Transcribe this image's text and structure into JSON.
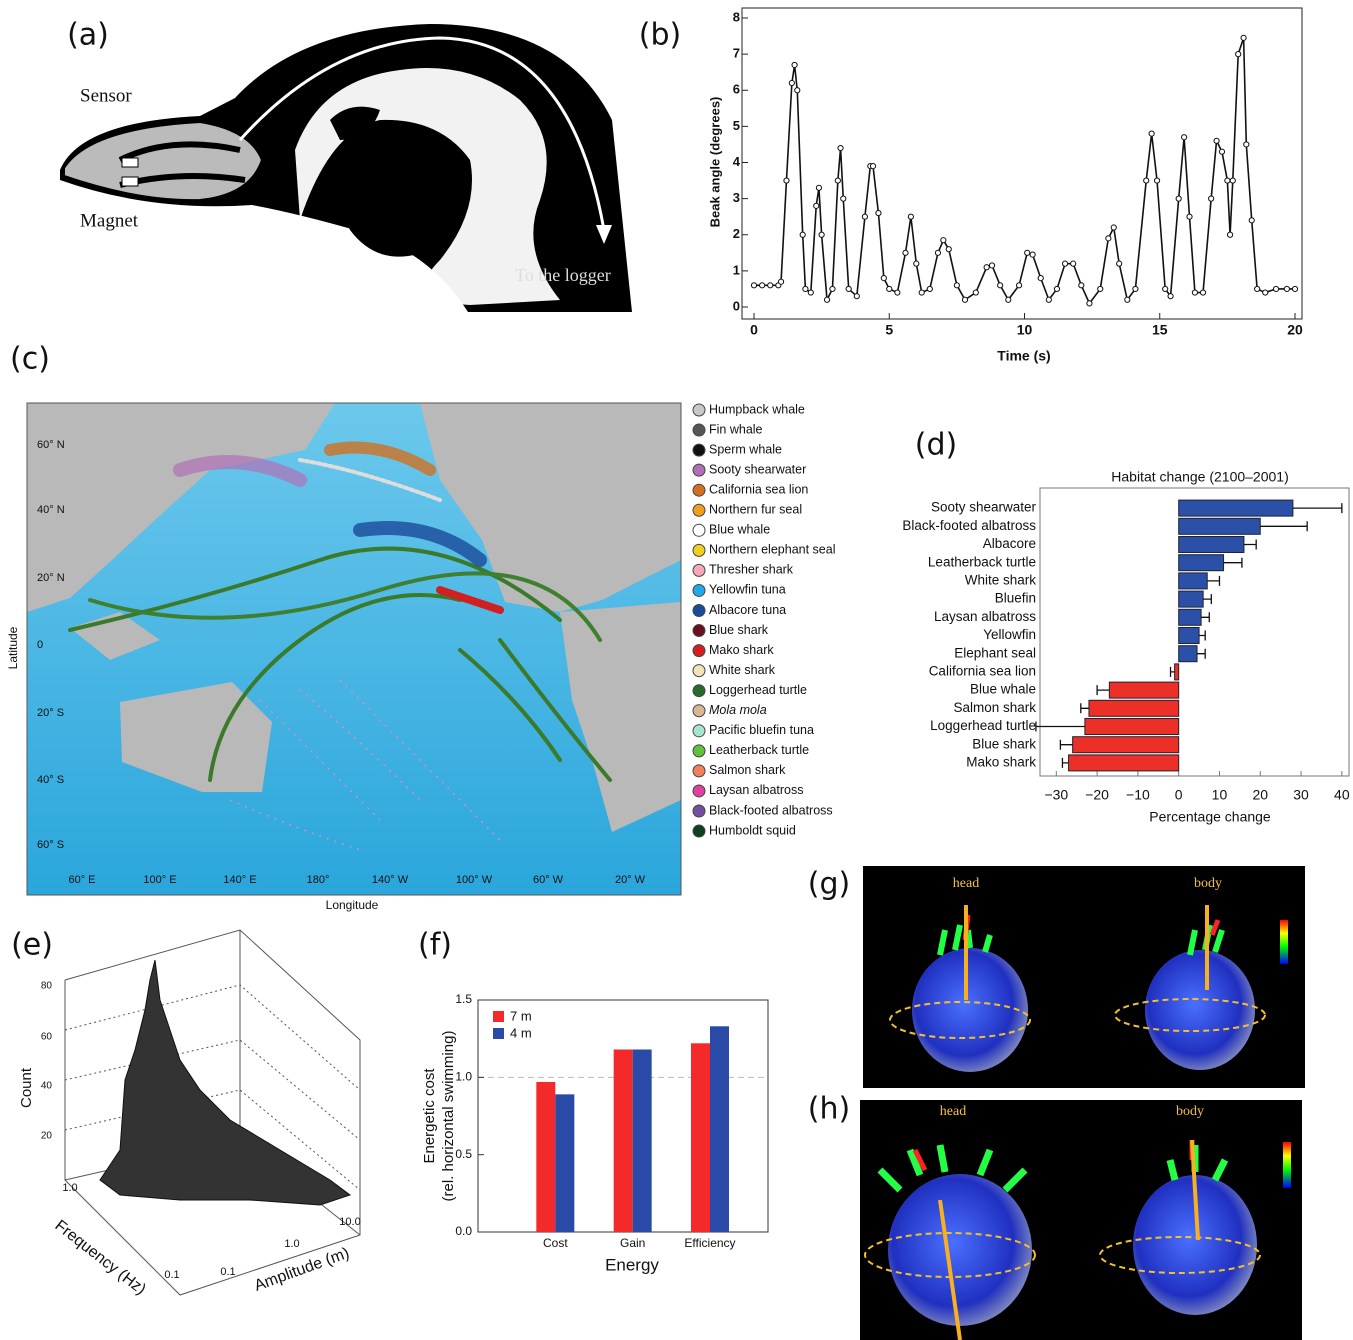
{
  "panel_labels": [
    "(a)",
    "(b)",
    "(c)",
    "(d)",
    "(e)",
    "(f)",
    "(g)",
    "(h)"
  ],
  "diagram_a": {
    "labels": [
      "Sensor",
      "Magnet",
      "To the logger"
    ]
  },
  "map_c": {
    "ylabel": "Latitude",
    "xlabel": "Longitude",
    "lat_labels": [
      "60° N",
      "40° N",
      "20° N",
      "0",
      "20° S",
      "40° S",
      "60° S"
    ],
    "lon_labels": [
      "60° E",
      "100° E",
      "140° E",
      "180°",
      "140° W",
      "100° W",
      "60° W",
      "20° W"
    ],
    "legend": [
      {
        "name": "Humpback whale",
        "color": "#c8c8c8"
      },
      {
        "name": "Fin whale",
        "color": "#555555"
      },
      {
        "name": "Sperm whale",
        "color": "#111111"
      },
      {
        "name": "Sooty shearwater",
        "color": "#b070b8"
      },
      {
        "name": "California sea lion",
        "color": "#d07020"
      },
      {
        "name": "Northern fur seal",
        "color": "#f0a020"
      },
      {
        "name": "Blue whale",
        "color": "#ffffff"
      },
      {
        "name": "Northern elephant seal",
        "color": "#f0d020"
      },
      {
        "name": "Thresher shark",
        "color": "#f4a8b8"
      },
      {
        "name": "Yellowfin tuna",
        "color": "#20a8e8"
      },
      {
        "name": "Albacore tuna",
        "color": "#1a4a9a"
      },
      {
        "name": "Blue shark",
        "color": "#6a1020"
      },
      {
        "name": "Mako shark",
        "color": "#d02020"
      },
      {
        "name": "White shark",
        "color": "#f2e4b8"
      },
      {
        "name": "Loggerhead turtle",
        "color": "#2a6a2a"
      },
      {
        "name": "Mola mola",
        "color": "#d8b890",
        "italic": true
      },
      {
        "name": "Pacific bluefin tuna",
        "color": "#a8e4d4"
      },
      {
        "name": "Leatherback turtle",
        "color": "#60c040"
      },
      {
        "name": "Salmon shark",
        "color": "#f08060"
      },
      {
        "name": "Laysan albatross",
        "color": "#e040a0"
      },
      {
        "name": "Black-footed albatross",
        "color": "#7050a0"
      },
      {
        "name": "Humboldt squid",
        "color": "#104020"
      }
    ]
  },
  "panel_e": {
    "ylabel": "Count",
    "count_ticks": [
      "80",
      "60",
      "40",
      "20"
    ],
    "frequency_label": "Frequency (Hz)",
    "frequency_ticks": [
      "1.0",
      "0.1"
    ],
    "amplitude_label": "Amplitude (m)",
    "amplitude_ticks": [
      "0.1",
      "1.0",
      "10.0"
    ]
  },
  "panel_g": {
    "labels": [
      "head",
      "body"
    ]
  },
  "panel_h": {
    "labels": [
      "head",
      "body"
    ]
  },
  "chart_data": [
    {
      "type": "line",
      "xlabel": "Time (s)",
      "ylabel": "Beak angle (degrees)",
      "color": "#111111",
      "x": [
        0,
        0.3,
        0.6,
        0.9,
        1.0,
        1.2,
        1.4,
        1.5,
        1.6,
        1.8,
        1.9,
        2.1,
        2.3,
        2.4,
        2.5,
        2.7,
        2.9,
        3.1,
        3.2,
        3.3,
        3.5,
        3.8,
        4.1,
        4.3,
        4.4,
        4.6,
        4.8,
        5.0,
        5.3,
        5.6,
        5.8,
        6.0,
        6.2,
        6.5,
        6.8,
        7.0,
        7.2,
        7.5,
        7.8,
        8.2,
        8.6,
        8.8,
        9.1,
        9.4,
        9.8,
        10.1,
        10.3,
        10.6,
        10.9,
        11.2,
        11.5,
        11.8,
        12.1,
        12.4,
        12.8,
        13.1,
        13.3,
        13.5,
        13.8,
        14.1,
        14.5,
        14.7,
        14.9,
        15.2,
        15.4,
        15.7,
        15.9,
        16.1,
        16.3,
        16.6,
        16.9,
        17.1,
        17.3,
        17.5,
        17.6,
        17.7,
        17.9,
        18.1,
        18.2,
        18.4,
        18.6,
        18.9,
        19.3,
        19.7,
        20
      ],
      "values": [
        0.6,
        0.6,
        0.6,
        0.6,
        0.7,
        3.5,
        6.2,
        6.7,
        6.0,
        2.0,
        0.5,
        0.4,
        2.8,
        3.3,
        2.0,
        0.2,
        0.5,
        3.5,
        4.4,
        3.0,
        0.5,
        0.3,
        2.5,
        3.9,
        3.9,
        2.6,
        0.8,
        0.5,
        0.4,
        1.5,
        2.5,
        1.2,
        0.4,
        0.5,
        1.5,
        1.85,
        1.6,
        0.6,
        0.2,
        0.4,
        1.1,
        1.15,
        0.6,
        0.2,
        0.6,
        1.5,
        1.45,
        0.8,
        0.2,
        0.5,
        1.2,
        1.2,
        0.6,
        0.1,
        0.5,
        1.9,
        2.2,
        1.2,
        0.2,
        0.5,
        3.5,
        4.8,
        3.5,
        0.5,
        0.3,
        3.0,
        4.7,
        2.5,
        0.4,
        0.4,
        3.0,
        4.6,
        4.3,
        3.5,
        2.0,
        3.5,
        7.0,
        7.45,
        4.5,
        2.4,
        0.5,
        0.4,
        0.5,
        0.5,
        0.5
      ],
      "xlim": [
        0,
        20
      ],
      "ylim": [
        0,
        8
      ],
      "xticks": [
        0,
        5,
        10,
        15,
        20
      ],
      "yticks": [
        0,
        1,
        2,
        3,
        4,
        5,
        6,
        7,
        8
      ]
    },
    {
      "type": "barh",
      "title": "Habitat change (2100–2001)",
      "xlabel": "Percentage change",
      "categories": [
        "Sooty shearwater",
        "Black-footed albatross",
        "Albacore",
        "Leatherback  turtle",
        "White shark",
        "Bluefin",
        "Laysan albatross",
        "Yellowfin",
        "Elephant seal",
        "California sea lion",
        "Blue whale",
        "Salmon shark",
        "Loggerhead turtle",
        "Blue shark",
        "Mako shark"
      ],
      "values": [
        28,
        20,
        16,
        11,
        7,
        6,
        5.5,
        5,
        4.5,
        -1,
        -17,
        -22,
        -23,
        -26,
        -27
      ],
      "errors": [
        12,
        11.5,
        3,
        4.5,
        3,
        2,
        2,
        1.5,
        2,
        1,
        3,
        2,
        12,
        3,
        1.5
      ],
      "positive_color": "#2a50a8",
      "negative_color": "#ec3028",
      "xlim": [
        -34,
        42
      ],
      "xticks": [
        {
          "value": -30,
          "label": "−30"
        },
        {
          "value": -20,
          "label": "−20"
        },
        {
          "value": -10,
          "label": "−10"
        },
        0,
        10,
        20,
        30,
        40
      ]
    },
    {
      "type": "bar",
      "xlabel": "Energy",
      "ylabel": [
        "Energetic cost",
        "(rel. horizontal swimming)"
      ],
      "categories": [
        "Cost",
        "Gain",
        "Efficiency"
      ],
      "series": [
        {
          "name": "7 m",
          "color": "#f42a2a",
          "values": [
            0.97,
            1.18,
            1.22
          ]
        },
        {
          "name": "4 m",
          "color": "#2a4aa8",
          "values": [
            0.89,
            1.18,
            1.33
          ]
        }
      ],
      "hline": 1,
      "ylim": [
        0,
        1.5
      ],
      "yticks": [
        {
          "value": 0,
          "label": "0.0"
        },
        0.5,
        {
          "value": 1,
          "label": "1.0"
        },
        1.5
      ]
    }
  ]
}
